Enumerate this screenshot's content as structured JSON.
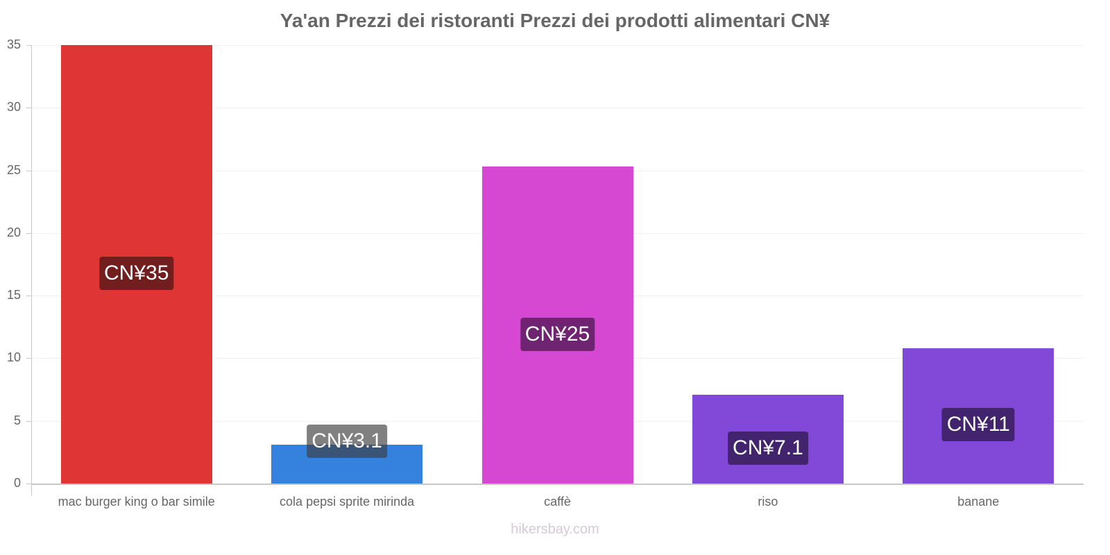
{
  "chart_data": {
    "type": "bar",
    "title": "Ya'an Prezzi dei ristoranti Prezzi dei prodotti alimentari CN¥",
    "xlabel": "",
    "ylabel": "",
    "ylim": [
      0,
      35
    ],
    "yticks": [
      "0",
      "5",
      "10",
      "15",
      "20",
      "25",
      "30",
      "35"
    ],
    "grid": true,
    "legend": "none",
    "categories": [
      "mac burger king o bar simile",
      "cola pepsi sprite mirinda",
      "caffè",
      "riso",
      "banane"
    ],
    "values": [
      35,
      3.1,
      25.3,
      7.1,
      10.8
    ],
    "data_labels": [
      "CN¥35",
      "CN¥3.1",
      "CN¥25",
      "CN¥7.1",
      "CN¥11"
    ],
    "bar_colors": [
      "#e03535",
      "#3581de",
      "#d648d2",
      "#8249d8",
      "#8249d8"
    ],
    "label_bg_colors": [
      "#731e1e",
      "rgba(60,60,60,0.65)",
      "#6e2470",
      "#42246e",
      "#42246e"
    ]
  },
  "watermark": "hikersbay.com"
}
